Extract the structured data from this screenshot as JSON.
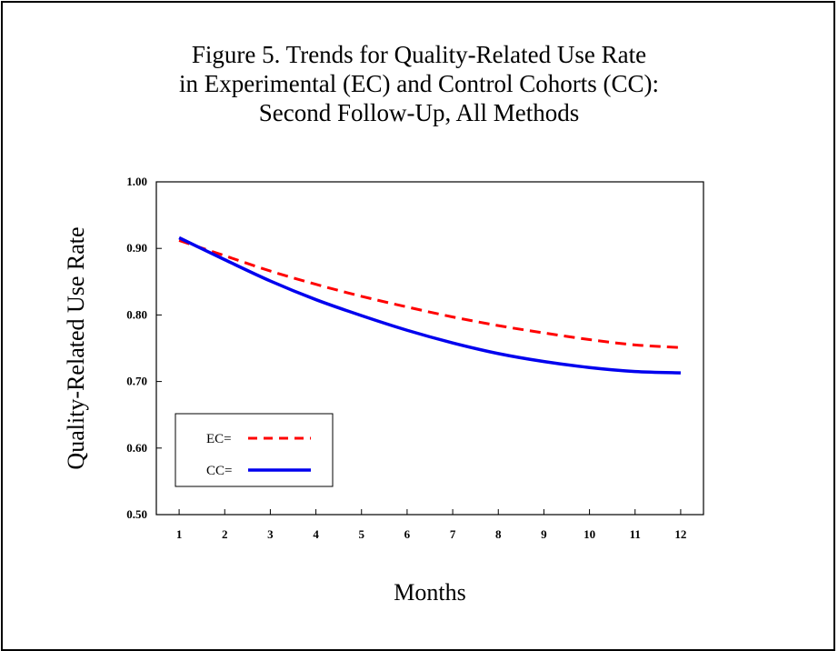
{
  "chart_data": {
    "type": "line",
    "title_lines": [
      "Figure 5. Trends for Quality-Related Use Rate",
      "in Experimental (EC) and Control Cohorts (CC):",
      "Second Follow-Up, All Methods"
    ],
    "xlabel": "Months",
    "ylabel": "Quality-Related Use Rate",
    "x": [
      1,
      2,
      3,
      4,
      5,
      6,
      7,
      8,
      9,
      10,
      11,
      12
    ],
    "x_tick_labels": [
      "1",
      "2",
      "3",
      "4",
      "5",
      "6",
      "7",
      "8",
      "9",
      "10",
      "11",
      "12"
    ],
    "y_tick_labels": [
      "0.50",
      "0.60",
      "0.70",
      "0.80",
      "0.90",
      "1.00"
    ],
    "y_ticks": [
      0.5,
      0.6,
      0.7,
      0.8,
      0.9,
      1.0
    ],
    "ylim": [
      0.5,
      1.0
    ],
    "xlim": [
      0.5,
      12.5
    ],
    "grid": false,
    "legend_placement": "bottom-left",
    "series": [
      {
        "name": "EC=",
        "color": "#ff0000",
        "style": "dashed",
        "values": [
          0.912,
          0.889,
          0.866,
          0.846,
          0.828,
          0.812,
          0.797,
          0.784,
          0.773,
          0.763,
          0.755,
          0.751
        ]
      },
      {
        "name": "CC=",
        "color": "#0000ee",
        "style": "solid",
        "values": [
          0.916,
          0.883,
          0.851,
          0.823,
          0.799,
          0.777,
          0.758,
          0.742,
          0.73,
          0.721,
          0.715,
          0.713
        ]
      }
    ]
  }
}
